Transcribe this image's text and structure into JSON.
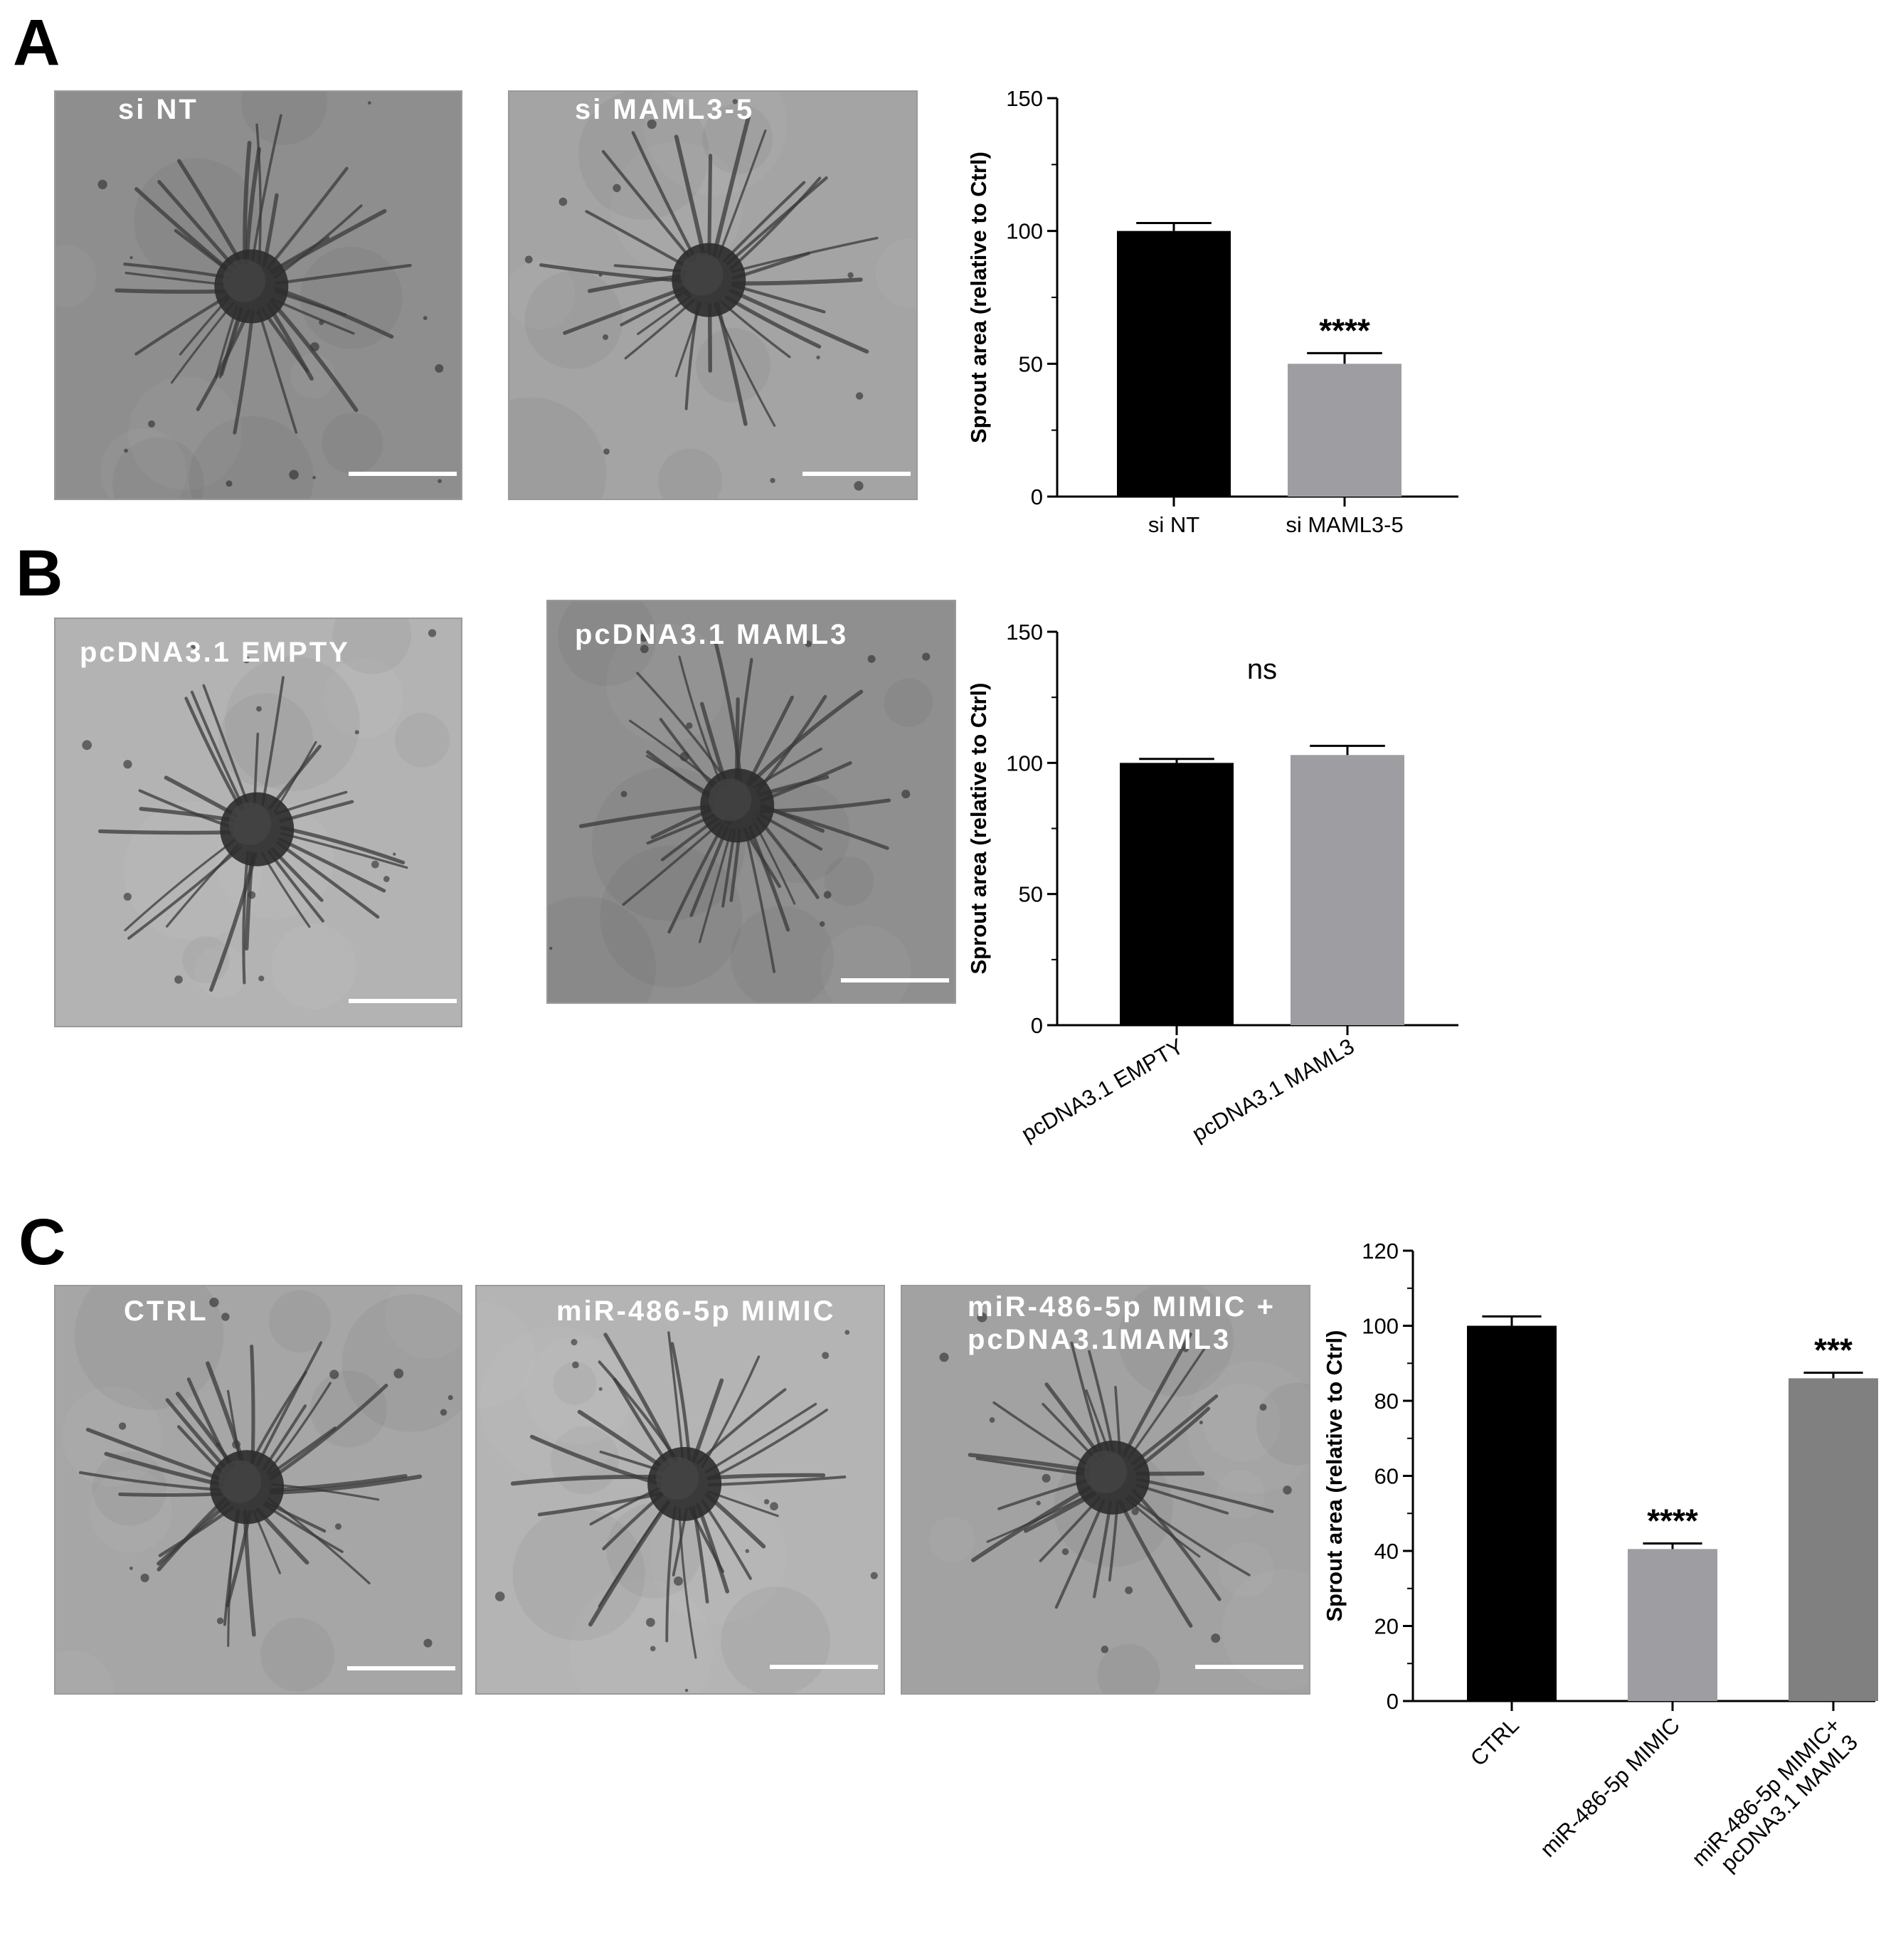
{
  "panels": [
    {
      "letter": "A",
      "images": [
        {
          "label": "si NT",
          "tone": "#8e8e8e"
        },
        {
          "label": "si MAML3-5",
          "tone": "#a4a4a4"
        }
      ]
    },
    {
      "letter": "B",
      "images": [
        {
          "label": "pcDNA3.1 EMPTY",
          "tone": "#b3b3b3"
        },
        {
          "label": "pcDNA3.1 MAML3",
          "tone": "#8f8f8f"
        }
      ]
    },
    {
      "letter": "C",
      "images": [
        {
          "label": "CTRL",
          "tone": "#a6a6a6"
        },
        {
          "label": "miR-486-5p MIMIC",
          "tone": "#b4b4b4"
        },
        {
          "label": "miR-486-5p MIMIC +\npcDNA3.1MAML3",
          "tone": "#a2a2a2"
        }
      ]
    }
  ],
  "chart_data": [
    {
      "type": "bar",
      "panel": "A",
      "categories": [
        "si NT",
        "si MAML3-5"
      ],
      "values": [
        100,
        50
      ],
      "errors": [
        3,
        4
      ],
      "bar_colors": [
        "#000000",
        "#9d9da2"
      ],
      "annotations": [
        "",
        "****"
      ],
      "ylabel": "Sprout area (relative to Ctrl)",
      "ylim": [
        0,
        150
      ],
      "yticks": [
        0,
        50,
        100,
        150
      ],
      "xtick_rotation": 0,
      "grid": false
    },
    {
      "type": "bar",
      "panel": "B",
      "categories": [
        "pcDNA3.1 EMPTY",
        "pcDNA3.1 MAML3"
      ],
      "values": [
        100,
        103
      ],
      "errors": [
        1.5,
        3.5
      ],
      "bar_colors": [
        "#000000",
        "#9d9da2"
      ],
      "annotations": [],
      "comparison_label": "ns",
      "ylabel": "Sprout area (relative to Ctrl)",
      "ylim": [
        0,
        150
      ],
      "yticks": [
        0,
        50,
        100,
        150
      ],
      "xtick_rotation": -30,
      "grid": false
    },
    {
      "type": "bar",
      "panel": "C",
      "categories": [
        "CTRL",
        "miR-486-5p MIMIC",
        "miR-486-5p MIMIC+\npcDNA3.1  MAML3"
      ],
      "values": [
        100,
        40.5,
        86
      ],
      "errors": [
        2.5,
        1.5,
        1.5
      ],
      "bar_colors": [
        "#000000",
        "#9d9da2",
        "#808080"
      ],
      "annotations": [
        "",
        "****",
        "***"
      ],
      "ylabel": "Sprout area (relative to Ctrl)",
      "ylim": [
        0,
        120
      ],
      "yticks": [
        0,
        20,
        40,
        60,
        80,
        100,
        120
      ],
      "xtick_rotation": -45,
      "grid": false
    }
  ]
}
